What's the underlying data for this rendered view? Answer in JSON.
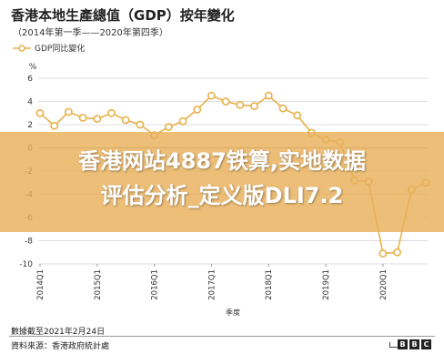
{
  "header": {
    "title": "香港本地生產總值（GDP）按年變化",
    "subtitle": "（2014年第一季——2020年第四季）"
  },
  "legend": {
    "label": "GDP同比變化"
  },
  "overlay": {
    "line1": "香港网站4887铁算,实地数据",
    "line2": "评估分析_定义版DLI7.2"
  },
  "footer": {
    "date_note": "數據截至2021年2月24日",
    "source": "資料來源：香港政府統計處",
    "logo_letters": [
      "B",
      "B",
      "C"
    ]
  },
  "chart_data": {
    "type": "line",
    "ylabel": "%",
    "xlabel": "季度",
    "ylim": [
      -10,
      6
    ],
    "yticks": [
      6,
      4,
      2,
      0,
      -2,
      -4,
      -6,
      -8,
      -10
    ],
    "grid": true,
    "x_tick_labels": [
      "2014Q1",
      "2015Q1",
      "2016Q1",
      "2017Q1",
      "2018Q1",
      "2019Q1",
      "2020Q1"
    ],
    "x": [
      "2014Q1",
      "2014Q2",
      "2014Q3",
      "2014Q4",
      "2015Q1",
      "2015Q2",
      "2015Q3",
      "2015Q4",
      "2016Q1",
      "2016Q2",
      "2016Q3",
      "2016Q4",
      "2017Q1",
      "2017Q2",
      "2017Q3",
      "2017Q4",
      "2018Q1",
      "2018Q2",
      "2018Q3",
      "2018Q4",
      "2019Q1",
      "2019Q2",
      "2019Q3",
      "2019Q4",
      "2020Q1",
      "2020Q2",
      "2020Q3",
      "2020Q4"
    ],
    "series": [
      {
        "name": "GDP同比變化",
        "color": "#e8b04a",
        "values": [
          3.0,
          1.9,
          3.1,
          2.6,
          2.5,
          3.0,
          2.4,
          2.0,
          1.1,
          1.8,
          2.3,
          3.3,
          4.5,
          4.0,
          3.7,
          3.6,
          4.5,
          3.4,
          2.8,
          1.3,
          0.7,
          0.5,
          -2.8,
          -2.9,
          -9.1,
          -9.0,
          -3.6,
          -3.0
        ]
      }
    ]
  }
}
